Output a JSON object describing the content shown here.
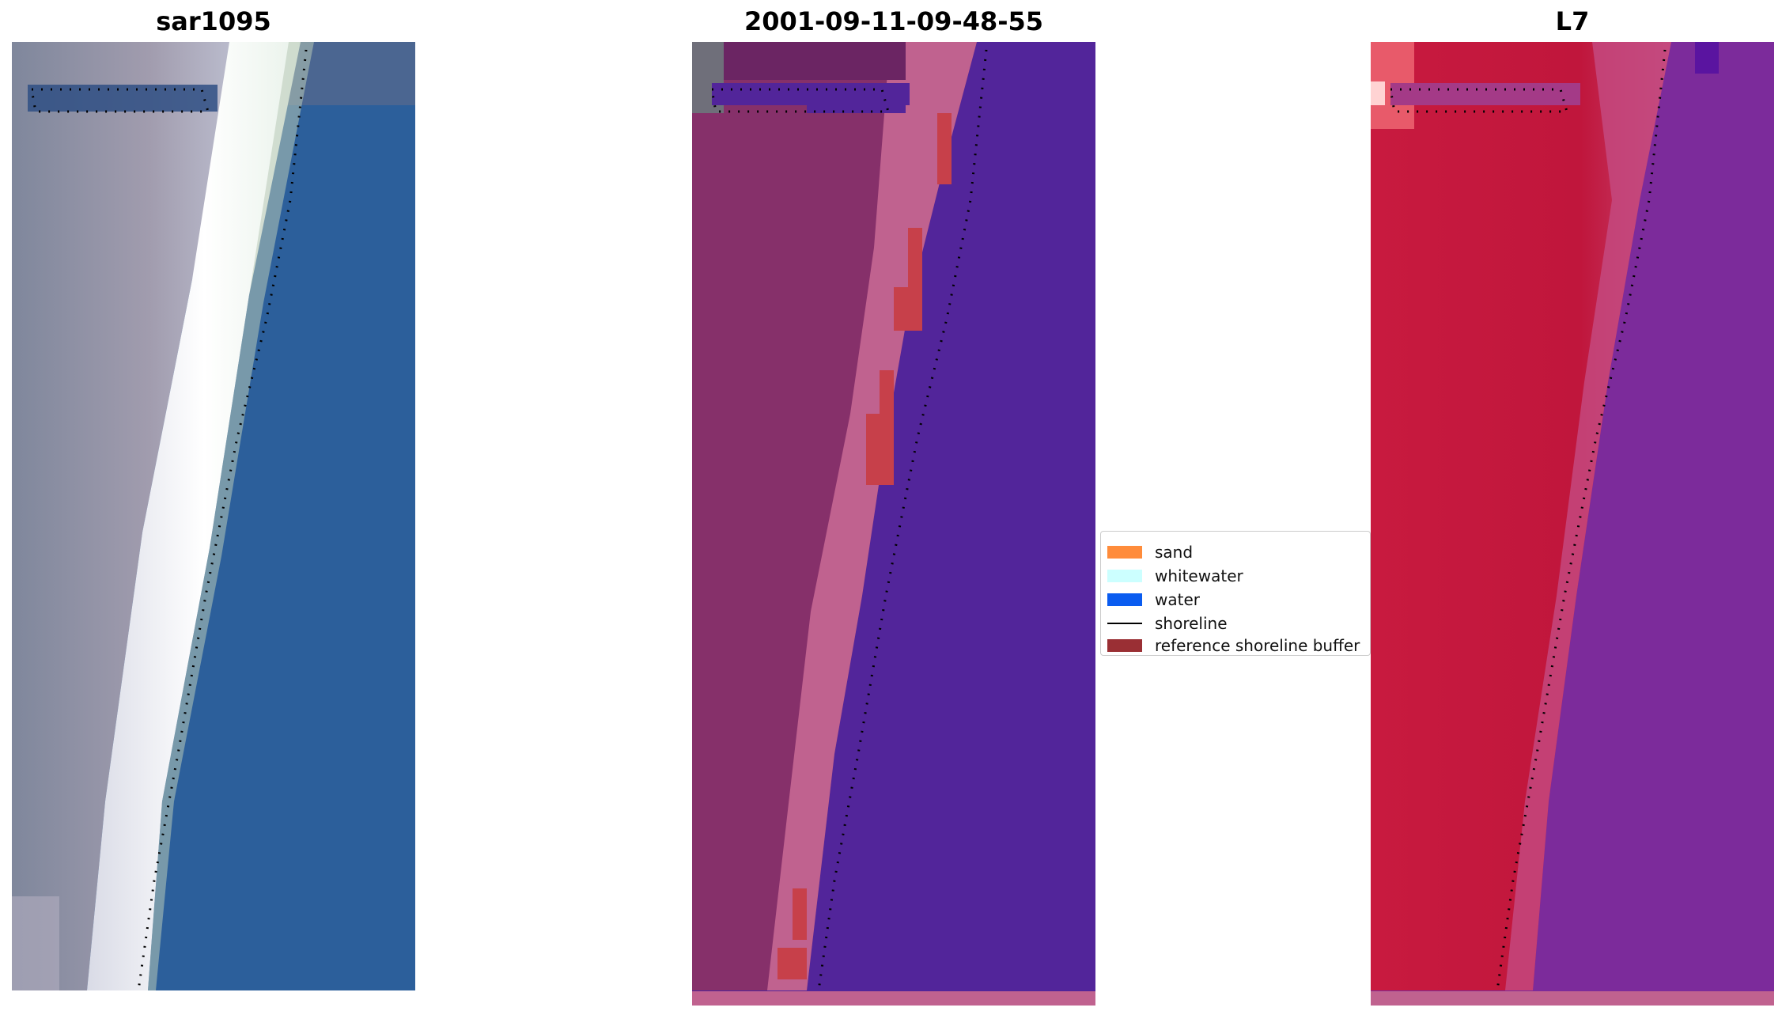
{
  "panels": [
    {
      "title": "sar1095",
      "kind": "rgb"
    },
    {
      "title": "2001-09-11-09-48-55",
      "kind": "classified"
    },
    {
      "title": "L7",
      "kind": "falsecolor"
    }
  ],
  "legend": {
    "items": [
      {
        "label": "sand",
        "type": "patch",
        "color": "#ff8c3b"
      },
      {
        "label": "whitewater",
        "type": "patch",
        "color": "#ccffff"
      },
      {
        "label": "water",
        "type": "patch",
        "color": "#0a5cf0"
      },
      {
        "label": "shoreline",
        "type": "line",
        "color": "#000000"
      },
      {
        "label": "reference shoreline buffer",
        "type": "patch",
        "color": "#9a2f34"
      }
    ]
  },
  "colors": {
    "sar_land": "#8d93a8",
    "sar_beach": "#f2f4f0",
    "sar_water": "#2c5f9b",
    "cls_land": "#86306a",
    "cls_sand_band": "#c0628f",
    "cls_water": "#52259a",
    "cls_buffer": "#c7404a",
    "l7_land": "#c8193f",
    "l7_water": "#7c2b9b",
    "shoreline_dots": "#000000"
  }
}
